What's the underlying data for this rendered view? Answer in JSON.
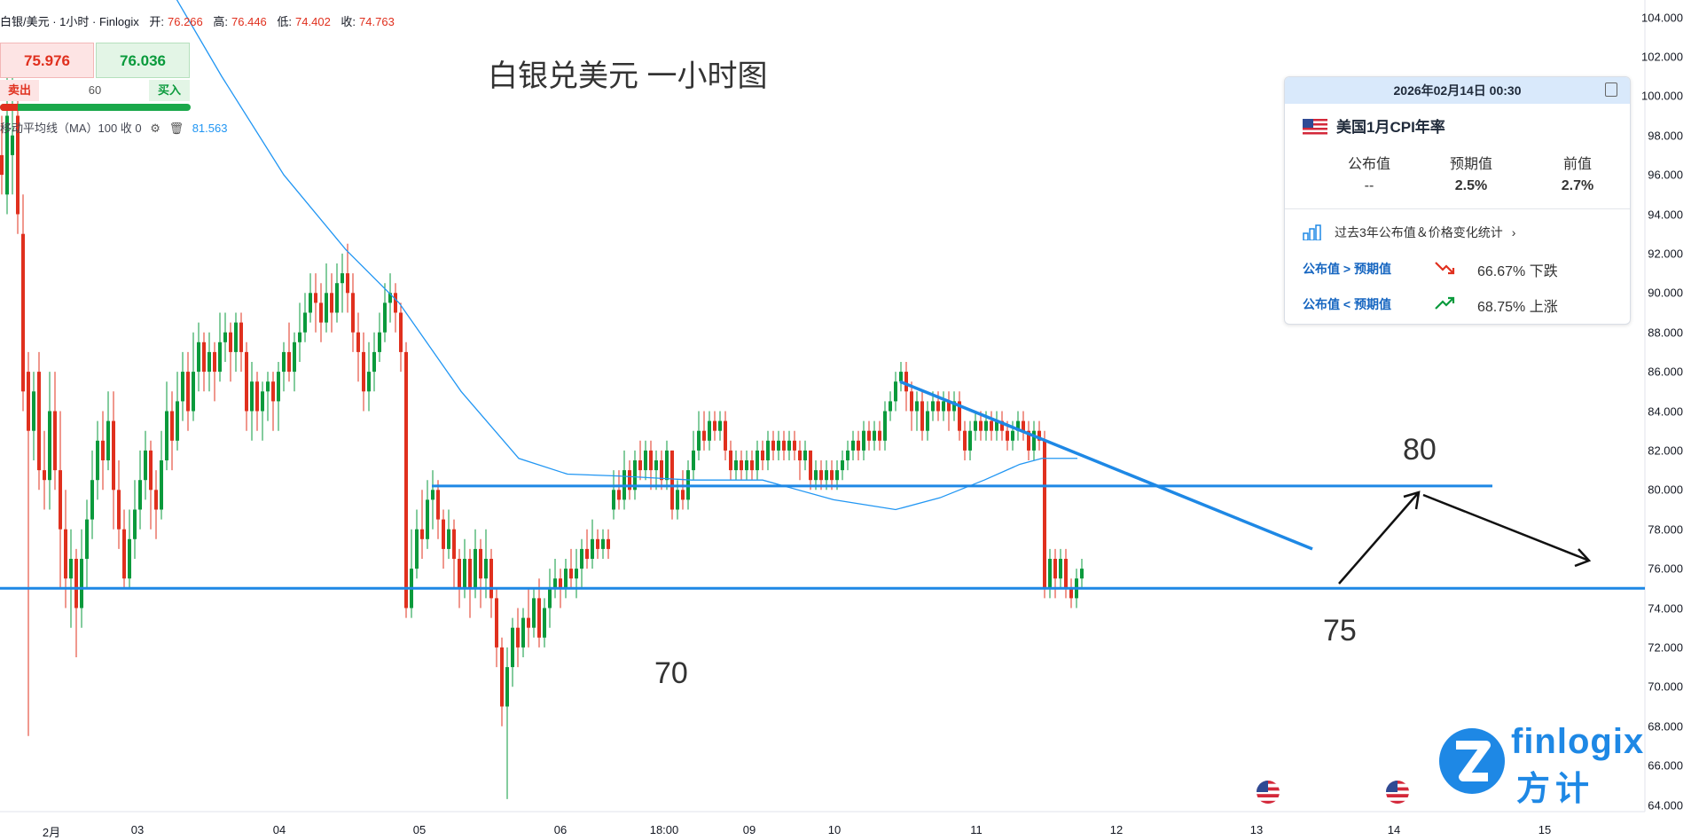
{
  "header": {
    "symbol": "白银/美元 · 1小时 · Finlogix",
    "open_label": "开:",
    "open": "76.266",
    "high_label": "高:",
    "high": "76.446",
    "low_label": "低:",
    "low": "74.402",
    "close_label": "收:",
    "close": "74.763"
  },
  "trade": {
    "sell_price": "75.976",
    "buy_price": "76.036",
    "sell_label": "卖出",
    "quantity": "60",
    "buy_label": "买入"
  },
  "indicator": {
    "label": "移动平均线（MA）100 收 0",
    "value": "81.563"
  },
  "chart_title": "白银兑美元 一小时图",
  "annotations": {
    "level_80": "80",
    "level_75": "75",
    "level_70": "70"
  },
  "event_panel": {
    "datetime": "2026年02月14日 00:30",
    "event": "美国1月CPI年率",
    "headers": [
      "公布值",
      "预期值",
      "前值"
    ],
    "values": [
      "--",
      "2.5%",
      "2.7%"
    ],
    "stats_link": "过去3年公布值＆价格变化统计",
    "rows": [
      {
        "condition": "公布值 > 预期值",
        "result": "66.67% 下跌",
        "direction": "down",
        "color": "#e0301e"
      },
      {
        "condition": "公布值 < 预期值",
        "result": "68.75% 上涨",
        "direction": "up",
        "color": "#0a9a3c"
      }
    ]
  },
  "logo": {
    "brand": "finlogix",
    "cn": "方计"
  },
  "colors": {
    "up": "#0a9a3c",
    "down": "#e0301e",
    "ma": "#2196f3",
    "trendline": "#1e88e5"
  },
  "chart_data": {
    "type": "candlestick",
    "title": "白银兑美元 一小时图",
    "x_ticks": [
      "2月",
      "03",
      "04",
      "05",
      "06",
      "18:00",
      "09",
      "10",
      "11",
      "12",
      "13",
      "14",
      "15"
    ],
    "y_ticks": [
      "64.000",
      "66.000",
      "68.000",
      "70.000",
      "72.000",
      "74.000",
      "76.000",
      "78.000",
      "80.000",
      "82.000",
      "84.000",
      "86.000",
      "88.000",
      "90.000",
      "92.000",
      "94.000",
      "96.000",
      "98.000",
      "100.000",
      "102.000",
      "104.000"
    ],
    "ylim": [
      64,
      104
    ],
    "horizontal_levels": [
      80.2,
      75.0
    ],
    "trendline": [
      [
        1015,
        85.5
      ],
      [
        1480,
        77.0
      ]
    ],
    "ma_period": 100,
    "ma_last": 81.563,
    "ma": [
      [
        185,
        106
      ],
      [
        250,
        101
      ],
      [
        320,
        96
      ],
      [
        390,
        92.2
      ],
      [
        450,
        89.5
      ],
      [
        520,
        85
      ],
      [
        585,
        81.6
      ],
      [
        640,
        80.8
      ],
      [
        700,
        80.7
      ],
      [
        780,
        80.5
      ],
      [
        860,
        80.5
      ],
      [
        940,
        79.5
      ],
      [
        1010,
        79.0
      ],
      [
        1060,
        79.6
      ],
      [
        1110,
        80.5
      ],
      [
        1150,
        81.3
      ],
      [
        1175,
        81.6
      ],
      [
        1215,
        81.6
      ]
    ],
    "candles": [
      [
        0,
        97,
        96,
        99,
        95
      ],
      [
        6,
        95,
        99,
        101,
        94
      ],
      [
        12,
        97,
        98,
        101,
        95
      ],
      [
        18,
        99,
        94,
        100,
        93
      ],
      [
        24,
        93,
        85,
        95,
        84
      ],
      [
        30,
        86,
        83,
        87,
        67.5
      ],
      [
        36,
        83,
        85,
        86,
        81.5
      ],
      [
        42,
        86,
        81,
        87,
        80
      ],
      [
        48,
        81,
        80.5,
        83,
        79
      ],
      [
        54,
        80.5,
        84,
        86,
        79
      ],
      [
        60,
        84,
        81,
        86,
        80
      ],
      [
        66,
        81,
        78,
        84,
        75
      ],
      [
        72,
        78,
        75.5,
        80,
        74
      ],
      [
        78,
        75.5,
        76.5,
        78,
        73
      ],
      [
        84,
        76.5,
        74,
        77,
        71.5
      ],
      [
        90,
        74,
        76.5,
        78,
        73
      ],
      [
        96,
        76.5,
        78.5,
        79.5,
        75
      ],
      [
        102,
        78.5,
        80.5,
        82,
        77.5
      ],
      [
        108,
        80.5,
        82.5,
        83.5,
        79.5
      ],
      [
        114,
        82.5,
        81.5,
        84,
        80
      ],
      [
        120,
        81.5,
        83.5,
        85,
        81
      ],
      [
        126,
        83.5,
        80,
        85,
        78
      ],
      [
        132,
        80,
        78,
        81.5,
        77
      ],
      [
        138,
        78,
        75.5,
        79,
        75
      ],
      [
        144,
        75.5,
        77.5,
        79,
        75
      ],
      [
        150,
        77.5,
        79,
        80.5,
        76.5
      ],
      [
        156,
        79,
        80.5,
        82,
        78
      ],
      [
        162,
        80.5,
        82,
        83,
        79.5
      ],
      [
        168,
        82,
        80,
        82.5,
        78
      ],
      [
        174,
        80,
        79,
        81,
        77.5
      ],
      [
        180,
        79,
        81.5,
        83,
        78.5
      ],
      [
        186,
        81.5,
        84,
        85.5,
        81
      ],
      [
        192,
        84,
        82.5,
        85,
        81
      ],
      [
        198,
        82.5,
        84.5,
        86,
        82
      ],
      [
        204,
        84.5,
        86,
        87,
        83.5
      ],
      [
        210,
        86,
        84,
        87,
        83
      ],
      [
        216,
        84,
        86,
        88,
        83.5
      ],
      [
        222,
        86,
        87.5,
        88.5,
        85
      ],
      [
        228,
        87.5,
        86,
        88,
        85
      ],
      [
        234,
        86,
        87,
        88,
        85
      ],
      [
        240,
        87,
        86,
        87.5,
        84.5
      ],
      [
        246,
        86,
        87.5,
        89,
        85.5
      ],
      [
        252,
        87.5,
        88,
        89,
        86.5
      ],
      [
        258,
        88,
        87,
        88.5,
        85.5
      ],
      [
        264,
        87,
        88.5,
        89,
        86
      ],
      [
        270,
        88.5,
        87,
        89,
        86
      ],
      [
        276,
        87,
        84,
        87.5,
        83
      ],
      [
        282,
        84,
        85.5,
        86.5,
        82.5
      ],
      [
        288,
        85.5,
        84,
        86,
        83
      ],
      [
        294,
        84,
        85,
        85.5,
        82.5
      ],
      [
        300,
        85,
        85.5,
        86,
        83.5
      ],
      [
        306,
        85.5,
        84.5,
        86,
        83
      ],
      [
        312,
        84.5,
        86,
        86.5,
        83
      ],
      [
        318,
        86,
        87,
        87.5,
        85
      ],
      [
        324,
        87,
        86,
        88.5,
        85.5
      ],
      [
        330,
        86,
        87.5,
        88,
        85
      ],
      [
        336,
        87.5,
        88,
        89.5,
        86.5
      ],
      [
        342,
        88,
        89,
        90,
        87.5
      ],
      [
        348,
        89,
        90,
        91,
        88.5
      ],
      [
        354,
        90,
        89.5,
        91,
        88
      ],
      [
        360,
        89.5,
        88.5,
        90.5,
        87.5
      ],
      [
        366,
        88.5,
        90,
        91.5,
        88
      ],
      [
        372,
        90,
        89,
        91,
        88
      ],
      [
        378,
        89,
        90.5,
        91.5,
        88.5
      ],
      [
        384,
        90.5,
        91,
        92,
        89
      ],
      [
        390,
        91,
        90,
        92.5,
        89
      ],
      [
        396,
        90,
        88,
        91,
        87
      ],
      [
        402,
        88,
        87,
        89,
        85.5
      ],
      [
        408,
        87,
        85,
        88,
        84
      ],
      [
        414,
        85,
        86,
        87.5,
        84
      ],
      [
        420,
        86,
        87,
        88,
        85
      ],
      [
        426,
        87,
        88,
        89,
        86.5
      ],
      [
        432,
        88,
        89.5,
        90.5,
        87.5
      ],
      [
        438,
        89.5,
        90,
        91,
        88.5
      ],
      [
        444,
        90,
        89,
        90.5,
        88
      ],
      [
        450,
        89,
        87,
        89.5,
        86
      ],
      [
        456,
        87,
        74,
        87.5,
        73.5
      ],
      [
        462,
        74,
        76,
        78,
        73.5
      ],
      [
        468,
        76,
        78,
        79,
        75.5
      ],
      [
        474,
        78,
        77.5,
        80,
        76.5
      ],
      [
        480,
        77.5,
        79.5,
        80.5,
        77
      ],
      [
        486,
        79.5,
        80,
        81,
        78
      ],
      [
        492,
        80,
        78.5,
        80.5,
        77.5
      ],
      [
        498,
        78.5,
        77,
        79,
        76
      ],
      [
        504,
        77,
        78,
        79,
        76.5
      ],
      [
        510,
        78,
        76.5,
        78.5,
        75
      ],
      [
        516,
        76.5,
        75,
        77,
        74
      ],
      [
        522,
        75,
        76.5,
        77.5,
        74.5
      ],
      [
        528,
        76.5,
        75,
        77,
        73.5
      ],
      [
        534,
        75,
        77,
        78,
        74.5
      ],
      [
        540,
        77,
        75.5,
        77.5,
        74
      ],
      [
        546,
        75.5,
        76.5,
        78,
        74.5
      ],
      [
        552,
        76.5,
        74.5,
        77,
        73.5
      ],
      [
        558,
        74.5,
        72,
        75,
        71
      ],
      [
        564,
        72,
        69,
        72.5,
        68
      ],
      [
        570,
        69,
        71,
        72,
        64.3
      ],
      [
        576,
        71,
        73,
        73.5,
        70
      ],
      [
        582,
        73,
        72,
        74,
        71
      ],
      [
        588,
        72,
        73.5,
        74,
        71.5
      ],
      [
        594,
        73.5,
        73,
        75,
        72
      ],
      [
        600,
        73,
        74.5,
        75,
        72.5
      ],
      [
        606,
        74.5,
        72.5,
        75.5,
        72
      ],
      [
        612,
        72.5,
        74,
        74.5,
        72
      ],
      [
        618,
        74,
        75,
        76,
        73
      ],
      [
        624,
        75,
        75.5,
        76.5,
        74.5
      ],
      [
        630,
        75.5,
        75,
        76,
        74
      ],
      [
        636,
        75,
        76,
        76.5,
        74.5
      ],
      [
        642,
        76,
        75.5,
        77,
        75
      ],
      [
        648,
        75.5,
        76,
        77,
        74.5
      ],
      [
        654,
        76,
        77,
        77.5,
        75
      ],
      [
        660,
        77,
        76.5,
        78,
        76
      ],
      [
        666,
        76.5,
        77.5,
        78.5,
        76
      ],
      [
        672,
        77.5,
        77,
        78,
        76.5
      ],
      [
        678,
        77,
        77.5,
        78,
        76.5
      ],
      [
        684,
        77.5,
        77,
        78,
        76.5
      ],
      [
        690,
        79,
        80,
        81,
        78.5
      ],
      [
        696,
        80,
        79.5,
        81,
        79
      ],
      [
        702,
        79.5,
        81,
        82,
        79
      ],
      [
        708,
        81,
        80,
        81.5,
        79.5
      ],
      [
        714,
        80,
        81.5,
        82,
        79.5
      ],
      [
        720,
        81.5,
        81,
        82.5,
        80.5
      ],
      [
        726,
        81,
        82,
        82.5,
        80.5
      ],
      [
        732,
        82,
        81,
        82.5,
        80
      ],
      [
        738,
        81,
        81.5,
        82,
        80
      ],
      [
        744,
        81.5,
        80.5,
        82,
        80
      ],
      [
        750,
        80.5,
        82,
        82.5,
        80
      ],
      [
        756,
        82,
        79,
        82,
        78.5
      ],
      [
        762,
        79,
        80,
        80.5,
        78.5
      ],
      [
        768,
        80,
        79.5,
        81,
        79
      ],
      [
        774,
        79.5,
        81,
        81.5,
        79
      ],
      [
        780,
        81,
        82,
        83,
        80.5
      ],
      [
        786,
        82,
        83,
        84,
        81.5
      ],
      [
        792,
        83,
        82.5,
        84,
        82
      ],
      [
        798,
        82.5,
        83.5,
        84,
        82
      ],
      [
        804,
        83.5,
        83,
        84,
        82.5
      ],
      [
        810,
        83,
        83.5,
        84,
        82.5
      ],
      [
        816,
        83.5,
        82,
        84,
        81.5
      ],
      [
        822,
        82,
        81,
        82.5,
        80.5
      ],
      [
        828,
        81,
        81.5,
        82,
        80.5
      ],
      [
        834,
        81.5,
        81,
        82,
        80.5
      ],
      [
        840,
        81,
        81.5,
        82,
        80.5
      ],
      [
        846,
        81.5,
        81,
        82,
        80.5
      ],
      [
        852,
        81,
        82,
        82.5,
        80.5
      ],
      [
        858,
        82,
        81.5,
        82.5,
        81
      ],
      [
        864,
        81.5,
        82.5,
        83,
        81
      ],
      [
        870,
        82.5,
        82,
        83,
        81.5
      ],
      [
        876,
        82,
        82.5,
        83,
        81.5
      ],
      [
        882,
        82.5,
        82,
        83,
        81.5
      ],
      [
        888,
        82,
        82.5,
        83,
        81.5
      ],
      [
        894,
        82.5,
        82,
        83,
        81.5
      ],
      [
        900,
        82,
        81.5,
        82.5,
        80.5
      ],
      [
        906,
        81.5,
        82,
        82.5,
        81
      ],
      [
        912,
        82,
        80.5,
        82,
        80
      ],
      [
        918,
        80.5,
        81,
        81.5,
        80
      ],
      [
        924,
        81,
        80.5,
        81.5,
        80
      ],
      [
        930,
        80.5,
        81,
        81.5,
        80
      ],
      [
        936,
        81,
        80.5,
        81.5,
        80
      ],
      [
        942,
        80.5,
        81,
        81.5,
        80
      ],
      [
        948,
        81,
        81.5,
        82,
        80.5
      ],
      [
        954,
        81.5,
        82,
        82.5,
        81
      ],
      [
        960,
        82,
        82.5,
        83,
        81.5
      ],
      [
        966,
        82.5,
        82,
        83,
        81.5
      ],
      [
        972,
        82,
        83,
        83.5,
        81.5
      ],
      [
        978,
        83,
        82.5,
        83.5,
        82
      ],
      [
        984,
        82.5,
        83,
        83.5,
        82
      ],
      [
        990,
        83,
        82.5,
        83.5,
        82
      ],
      [
        996,
        82.5,
        84,
        84.5,
        82
      ],
      [
        1002,
        84,
        84.5,
        85,
        83.5
      ],
      [
        1008,
        84.5,
        85.5,
        86,
        84
      ],
      [
        1014,
        85.5,
        86,
        86.5,
        85
      ],
      [
        1020,
        86,
        85,
        86.5,
        84
      ],
      [
        1026,
        85,
        84,
        85.5,
        83
      ],
      [
        1032,
        84,
        84.5,
        85,
        83
      ],
      [
        1038,
        84.5,
        83,
        85,
        82.5
      ],
      [
        1044,
        83,
        84,
        84.5,
        82.5
      ],
      [
        1050,
        84,
        84.5,
        85,
        83.5
      ],
      [
        1056,
        84.5,
        84,
        85,
        83.5
      ],
      [
        1062,
        84,
        84.5,
        85,
        83.5
      ],
      [
        1068,
        84.5,
        84,
        85,
        83
      ],
      [
        1074,
        84,
        84.5,
        85,
        83.5
      ],
      [
        1080,
        84.5,
        83,
        85,
        82.5
      ],
      [
        1086,
        83,
        82,
        83.5,
        81.5
      ],
      [
        1092,
        82,
        83,
        83.5,
        81.5
      ],
      [
        1098,
        83,
        83.5,
        84,
        82.5
      ],
      [
        1104,
        83.5,
        83,
        84,
        82.5
      ],
      [
        1110,
        83,
        83.5,
        84,
        82.5
      ],
      [
        1116,
        83.5,
        83,
        84,
        82.5
      ],
      [
        1122,
        83,
        83.5,
        84,
        82.5
      ],
      [
        1128,
        83.5,
        83,
        84,
        82.5
      ],
      [
        1134,
        83,
        82.5,
        83.5,
        82
      ],
      [
        1140,
        82.5,
        83,
        83.5,
        82
      ],
      [
        1146,
        83,
        83.5,
        84,
        82.5
      ],
      [
        1152,
        83.5,
        83,
        84,
        82.5
      ],
      [
        1158,
        83,
        82,
        83.5,
        81.5
      ],
      [
        1164,
        82,
        83,
        83.5,
        81.5
      ],
      [
        1170,
        83,
        82.5,
        83.5,
        82
      ],
      [
        1176,
        82.5,
        75,
        83,
        74.5
      ],
      [
        1182,
        75,
        76.5,
        77,
        74.5
      ],
      [
        1188,
        76.5,
        75.5,
        77,
        74.5
      ],
      [
        1194,
        75.5,
        76.5,
        77,
        75
      ],
      [
        1200,
        76.5,
        75,
        77,
        74.5
      ],
      [
        1206,
        75,
        74.5,
        75.5,
        74
      ],
      [
        1212,
        74.5,
        75.5,
        76,
        74
      ],
      [
        1218,
        75.5,
        76,
        76.5,
        75
      ]
    ]
  }
}
